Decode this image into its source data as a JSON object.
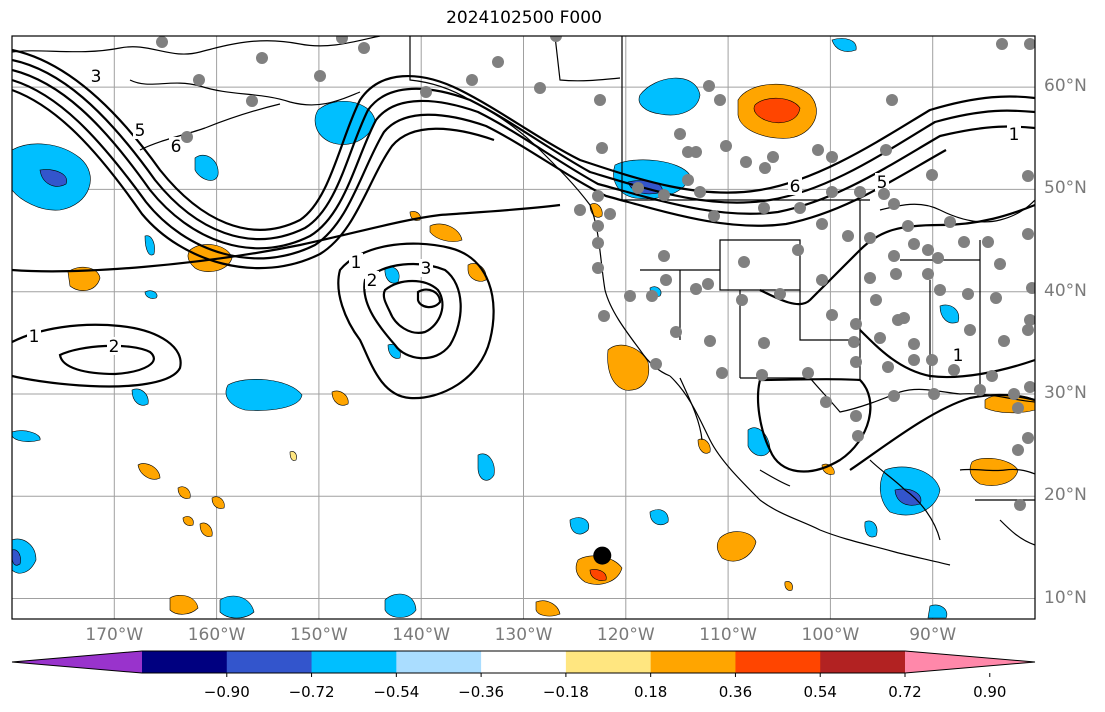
{
  "title": "2024102500 F000",
  "map": {
    "projection": "PlateCarree",
    "lon_range": [
      -180,
      -80
    ],
    "lat_range": [
      8,
      65
    ],
    "lat_labels": [
      "60°N",
      "50°N",
      "40°N",
      "30°N",
      "20°N",
      "10°N"
    ],
    "lon_labels": [
      "170°W",
      "160°W",
      "150°W",
      "140°W",
      "130°W",
      "120°W",
      "110°W",
      "100°W",
      "90°W"
    ],
    "contour_labels": [
      "3",
      "5",
      "6",
      "1",
      "2",
      "3",
      "1",
      "2",
      "6",
      "5",
      "1",
      "1"
    ],
    "marker": {
      "lon": -122.3,
      "lat": 14.2,
      "description": "black dot"
    },
    "stations_color": "#808080",
    "grid_color": "#a0a0a0",
    "label_color": "#7a7a7a"
  },
  "colorbar": {
    "ticks": [
      "−0.90",
      "−0.72",
      "−0.54",
      "−0.36",
      "−0.18",
      "0.18",
      "0.36",
      "0.54",
      "0.72",
      "0.90"
    ],
    "colors": [
      "#9933cc",
      "#000080",
      "#3355cc",
      "#00bfff",
      "#aaddff",
      "#ffffff",
      "#ffe680",
      "#ffa500",
      "#ff4500",
      "#b22222",
      "#ff88aa"
    ]
  }
}
